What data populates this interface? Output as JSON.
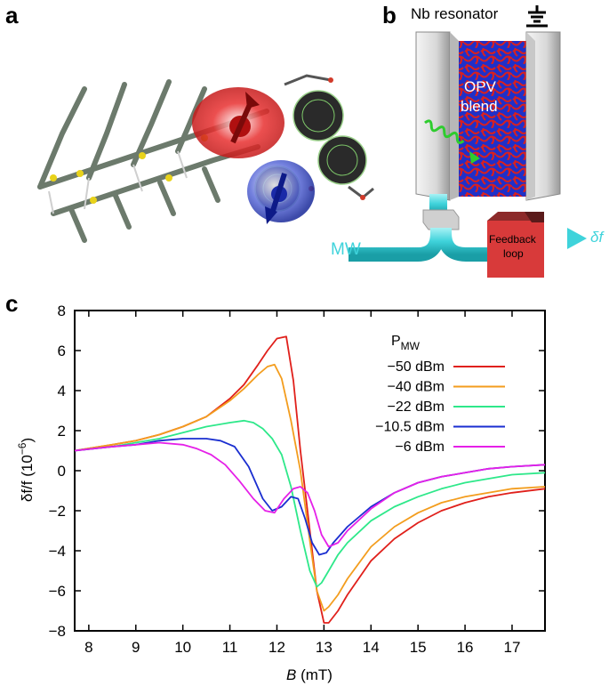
{
  "panels": {
    "a": "a",
    "b": "b",
    "c": "c"
  },
  "panel_b": {
    "resonator_label": "Nb resonator",
    "blend_label_line1": "OPV",
    "blend_label_line2": "blend",
    "mw_label": "MW",
    "feedback_line1": "Feedback",
    "feedback_line2": "loop",
    "output_label": "δf"
  },
  "chart_data": {
    "type": "line",
    "ylabel": "δf/f (10",
    "ylabel_exp": "−6",
    "ylabel_end": ")",
    "xlabel_italic": "B",
    "xlabel_rest": " (mT)",
    "xlim": [
      7.7,
      17.7
    ],
    "ylim": [
      -8,
      8
    ],
    "xticks": [
      8,
      9,
      10,
      11,
      12,
      13,
      14,
      15,
      16,
      17
    ],
    "yticks": [
      -8,
      -6,
      -4,
      -2,
      0,
      2,
      4,
      6,
      8
    ],
    "legend_title": "P",
    "legend_title_sub": "MW",
    "legend_position": "top-right",
    "series": [
      {
        "name": "−50 dBm",
        "color": "#e0201b",
        "x": [
          7.7,
          8.5,
          9,
          9.5,
          10,
          10.5,
          11,
          11.3,
          11.6,
          11.8,
          12,
          12.2,
          12.35,
          12.5,
          12.7,
          12.85,
          13,
          13.1,
          13.3,
          13.5,
          14,
          14.5,
          15,
          15.5,
          16,
          16.5,
          17,
          17.7
        ],
        "y": [
          1.0,
          1.3,
          1.5,
          1.8,
          2.2,
          2.7,
          3.6,
          4.3,
          5.3,
          6.0,
          6.6,
          6.7,
          4.5,
          1.0,
          -3.0,
          -6.0,
          -7.6,
          -7.6,
          -7.0,
          -6.2,
          -4.5,
          -3.4,
          -2.6,
          -2.0,
          -1.6,
          -1.3,
          -1.1,
          -0.9
        ]
      },
      {
        "name": "−40 dBm",
        "color": "#f39d1e",
        "x": [
          7.7,
          8.5,
          9,
          9.5,
          10,
          10.5,
          11,
          11.3,
          11.6,
          11.8,
          11.95,
          12.1,
          12.3,
          12.5,
          12.7,
          12.85,
          13,
          13.1,
          13.3,
          13.5,
          14,
          14.5,
          15,
          15.5,
          16,
          16.5,
          17,
          17.7
        ],
        "y": [
          1.0,
          1.3,
          1.5,
          1.8,
          2.2,
          2.7,
          3.5,
          4.1,
          4.8,
          5.2,
          5.3,
          4.6,
          2.5,
          0.0,
          -3.5,
          -6.0,
          -7.0,
          -6.8,
          -6.2,
          -5.4,
          -3.8,
          -2.8,
          -2.1,
          -1.6,
          -1.3,
          -1.1,
          -0.9,
          -0.8
        ]
      },
      {
        "name": "−22 dBm",
        "color": "#2ee88a",
        "x": [
          7.7,
          8.5,
          9,
          9.5,
          10,
          10.5,
          11,
          11.3,
          11.5,
          11.7,
          11.9,
          12.1,
          12.3,
          12.5,
          12.7,
          12.85,
          12.95,
          13.1,
          13.3,
          13.5,
          14,
          14.5,
          15,
          15.5,
          16,
          16.5,
          17,
          17.7
        ],
        "y": [
          1.0,
          1.2,
          1.4,
          1.6,
          1.9,
          2.2,
          2.4,
          2.5,
          2.4,
          2.1,
          1.6,
          0.8,
          -0.8,
          -3.0,
          -5.0,
          -5.8,
          -5.6,
          -5.0,
          -4.2,
          -3.6,
          -2.5,
          -1.8,
          -1.3,
          -0.9,
          -0.6,
          -0.4,
          -0.2,
          -0.1
        ]
      },
      {
        "name": "−10.5 dBm",
        "color": "#1a2ed0",
        "x": [
          7.7,
          8.5,
          9,
          9.5,
          10,
          10.5,
          10.8,
          11.1,
          11.4,
          11.7,
          11.9,
          12.1,
          12.3,
          12.45,
          12.6,
          12.75,
          12.9,
          13.05,
          13.2,
          13.5,
          14,
          14.5,
          15,
          15.5,
          16,
          16.5,
          17,
          17.7
        ],
        "y": [
          1.0,
          1.2,
          1.3,
          1.5,
          1.6,
          1.6,
          1.5,
          1.2,
          0.2,
          -1.4,
          -2.0,
          -1.8,
          -1.3,
          -1.4,
          -2.4,
          -3.6,
          -4.2,
          -4.1,
          -3.6,
          -2.8,
          -1.8,
          -1.1,
          -0.6,
          -0.3,
          -0.1,
          0.1,
          0.2,
          0.3
        ]
      },
      {
        "name": "−6 dBm",
        "color": "#e520e8",
        "x": [
          7.7,
          8.5,
          9,
          9.5,
          10,
          10.3,
          10.6,
          10.9,
          11.2,
          11.5,
          11.75,
          11.95,
          12.15,
          12.35,
          12.5,
          12.65,
          12.8,
          12.95,
          13.1,
          13.3,
          13.5,
          14,
          14.5,
          15,
          15.5,
          16,
          16.5,
          17,
          17.7
        ],
        "y": [
          1.0,
          1.2,
          1.3,
          1.4,
          1.3,
          1.1,
          0.8,
          0.3,
          -0.5,
          -1.4,
          -2.0,
          -2.1,
          -1.4,
          -0.9,
          -0.8,
          -1.1,
          -2.0,
          -3.2,
          -3.8,
          -3.6,
          -3.0,
          -1.9,
          -1.1,
          -0.6,
          -0.3,
          -0.1,
          0.1,
          0.2,
          0.3
        ]
      }
    ]
  }
}
